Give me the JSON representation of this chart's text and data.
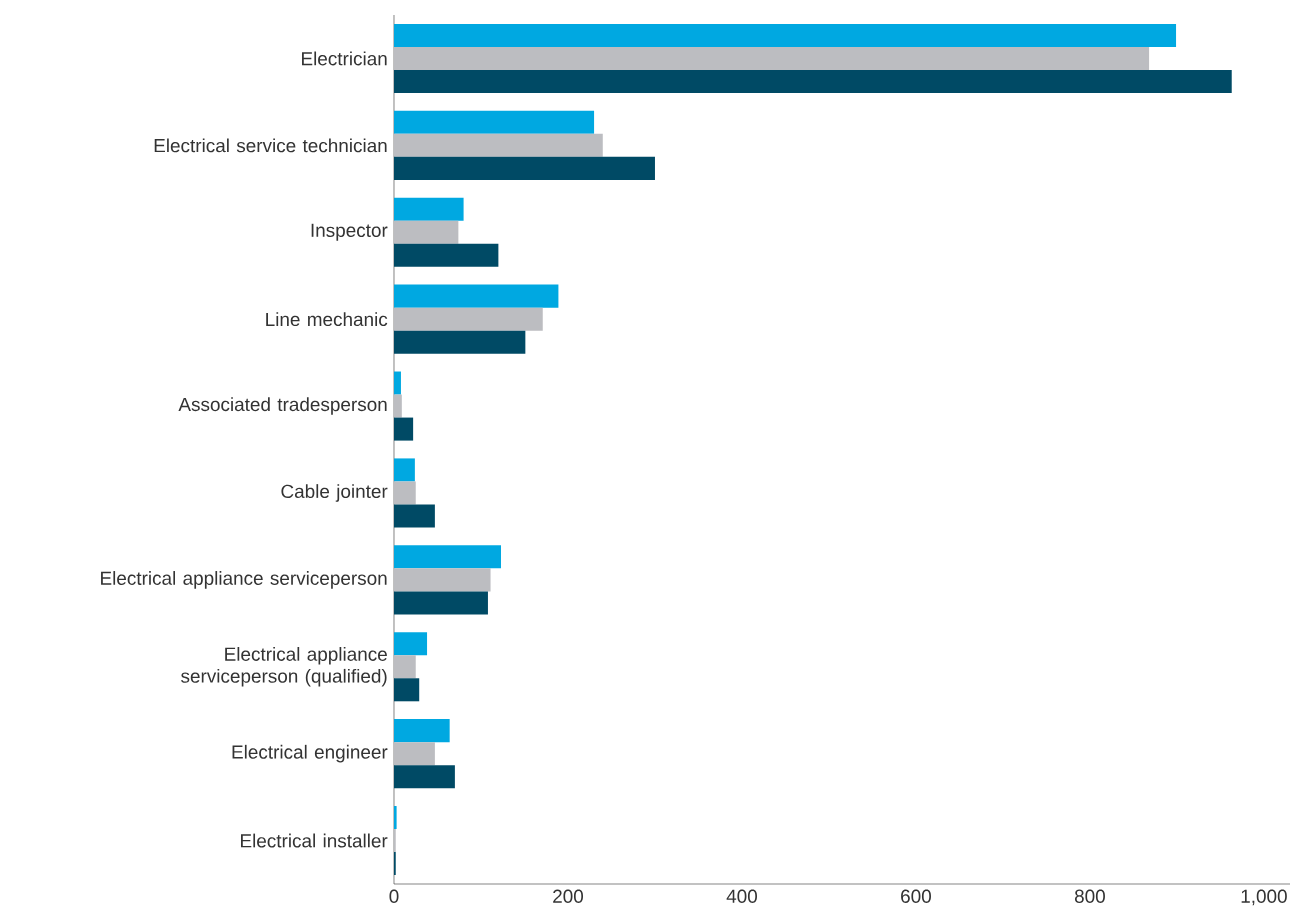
{
  "chart_data": {
    "type": "bar",
    "orientation": "horizontal",
    "categories": [
      "Electrician",
      "Electrical service technician",
      "Inspector",
      "Line mechanic",
      "Associated tradesperson",
      "Cable jointer",
      "Electrical appliance serviceperson",
      "Electrical appliance serviceperson (qualified)",
      "Electrical engineer",
      "Electrical installer"
    ],
    "series": [
      {
        "color": "#00a8e1",
        "values": [
          899,
          230,
          80,
          189,
          8,
          24,
          123,
          38,
          64,
          3
        ]
      },
      {
        "color": "#bcbdc1",
        "values": [
          868,
          240,
          74,
          171,
          9,
          25,
          111,
          25,
          47,
          2
        ]
      },
      {
        "color": "#004a65",
        "values": [
          963,
          300,
          120,
          151,
          22,
          47,
          108,
          29,
          70,
          2
        ]
      }
    ],
    "xlim": [
      0,
      1030
    ],
    "xticks": [
      0,
      200,
      400,
      600,
      800,
      {
        "value": 1000,
        "label": "1,000"
      }
    ]
  }
}
